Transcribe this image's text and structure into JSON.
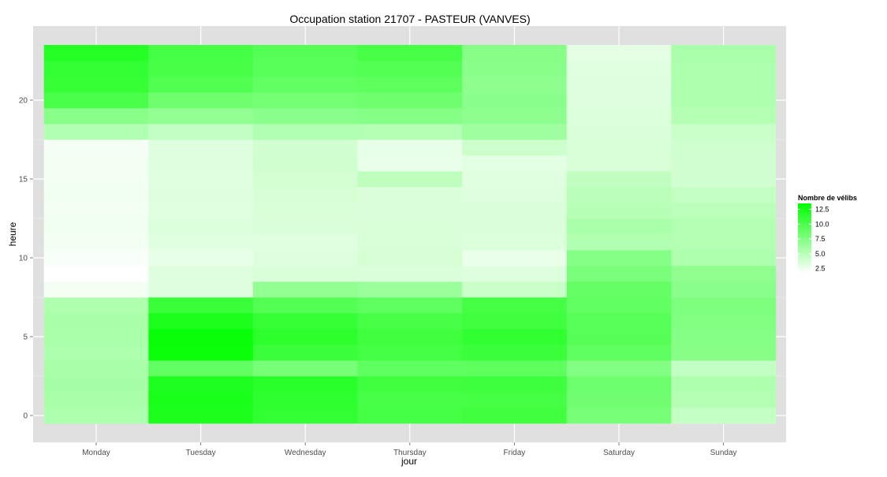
{
  "chart_data": {
    "type": "heatmap",
    "title": "Occupation station 21707 - PASTEUR (VANVES)",
    "xlabel": "jour",
    "ylabel": "heure",
    "x": [
      "Monday",
      "Tuesday",
      "Wednesday",
      "Thursday",
      "Friday",
      "Saturday",
      "Sunday"
    ],
    "y_ticks": [
      0,
      5,
      10,
      15,
      20
    ],
    "y_tick_labels": [
      "0",
      "5",
      "10",
      "15",
      "20"
    ],
    "ylim": [
      -0.5,
      23.5
    ],
    "grid": true,
    "legend": {
      "title": "Nombre de vélibs",
      "position": "right",
      "breaks": [
        2.5,
        5.0,
        7.5,
        10.0,
        12.5
      ],
      "labels": [
        "2.5",
        "5.0",
        "7.5",
        "10.0",
        "12.5"
      ],
      "range": [
        1.8,
        13.5
      ],
      "low_color": "#ffffff",
      "high_color": "#00ff00"
    },
    "colors": {
      "panel_background": "#e0e0e0",
      "grid": "#ffffff",
      "low": "#ffffff",
      "high": "#00ff00"
    },
    "hours": [
      0,
      1,
      2,
      3,
      4,
      5,
      6,
      7,
      8,
      9,
      10,
      11,
      12,
      13,
      14,
      15,
      16,
      17,
      18,
      19,
      20,
      21,
      22,
      23
    ],
    "values": [
      [
        5.6,
        5.8,
        5.9,
        5.8,
        5.6,
        5.7,
        5.8,
        5.5,
        2.3,
        1.8,
        2.1,
        2.3,
        2.5,
        2.3,
        2.5,
        2.4,
        2.3,
        2.2,
        5.4,
        7.2,
        10.1,
        11.0,
        11.2,
        11.8
      ],
      [
        12.2,
        12.3,
        12.1,
        9.0,
        13.0,
        13.1,
        12.2,
        10.9,
        3.3,
        3.3,
        2.9,
        3.2,
        3.4,
        3.2,
        3.3,
        3.2,
        3.3,
        3.3,
        4.6,
        6.8,
        8.4,
        9.8,
        10.2,
        10.4
      ],
      [
        11.2,
        11.4,
        11.6,
        8.0,
        10.8,
        11.5,
        11.0,
        9.7,
        6.8,
        3.6,
        3.3,
        3.2,
        3.5,
        3.6,
        3.7,
        3.8,
        4.0,
        3.9,
        5.4,
        7.1,
        8.2,
        9.0,
        9.4,
        9.6
      ],
      [
        10.4,
        10.3,
        10.6,
        9.1,
        10.4,
        10.6,
        10.2,
        9.1,
        6.4,
        3.5,
        3.7,
        3.6,
        3.6,
        3.5,
        3.5,
        4.8,
        2.8,
        2.9,
        5.3,
        7.4,
        8.4,
        9.3,
        9.7,
        10.3
      ],
      [
        10.6,
        10.4,
        10.7,
        9.3,
        10.8,
        11.3,
        10.6,
        10.4,
        4.3,
        3.3,
        2.8,
        3.4,
        3.5,
        3.5,
        3.3,
        3.2,
        3.1,
        4.1,
        6.2,
        7.0,
        7.1,
        7.0,
        7.2,
        7.3
      ],
      [
        8.0,
        8.3,
        8.5,
        7.5,
        9.2,
        9.6,
        9.5,
        9.0,
        8.9,
        7.9,
        7.4,
        5.4,
        5.7,
        5.1,
        5.0,
        4.7,
        3.6,
        3.6,
        3.5,
        3.4,
        3.3,
        3.3,
        3.2,
        3.0
      ],
      [
        4.5,
        5.2,
        5.5,
        4.6,
        7.3,
        7.4,
        7.6,
        7.7,
        7.1,
        6.9,
        5.6,
        5.3,
        5.3,
        4.9,
        4.5,
        3.9,
        3.9,
        4.0,
        4.3,
        5.2,
        5.5,
        5.6,
        5.6,
        5.7
      ]
    ]
  }
}
